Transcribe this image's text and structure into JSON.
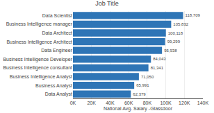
{
  "chart_data": {
    "type": "bar",
    "orientation": "horizontal",
    "title": "Job Title",
    "xlabel": "National Avg. Salary -Glassdoor",
    "categories": [
      "Data Analyst",
      "Business Analyst",
      "Business Intelligence Analyst",
      "Business Intelligence consultant",
      "Business Intelligence Developer",
      "Data Engineer",
      "Business Intelligence Architect",
      "Data Architect",
      "Business Intelligence manager",
      "Data Scientist"
    ],
    "values": [
      62379,
      65991,
      71050,
      81341,
      84043,
      95938,
      99299,
      100118,
      105832,
      118709
    ],
    "value_labels": [
      "62,379",
      "65,991",
      "71,050",
      "81,341",
      "84,043",
      "95,938",
      "99,299",
      "100,118",
      "105,832",
      "118,709"
    ],
    "data_labels": true,
    "color": "#2e75b6",
    "xlim": [
      0,
      140000
    ],
    "xticks": [
      {
        "value": 0,
        "label": "0K"
      },
      {
        "value": 20000,
        "label": "20K"
      },
      {
        "value": 40000,
        "label": "40K"
      },
      {
        "value": 60000,
        "label": "60K"
      },
      {
        "value": 80000,
        "label": "80K"
      },
      {
        "value": 100000,
        "label": "100K"
      },
      {
        "value": 120000,
        "label": "120K"
      },
      {
        "value": 140000,
        "label": "140K"
      }
    ],
    "grid": true
  }
}
